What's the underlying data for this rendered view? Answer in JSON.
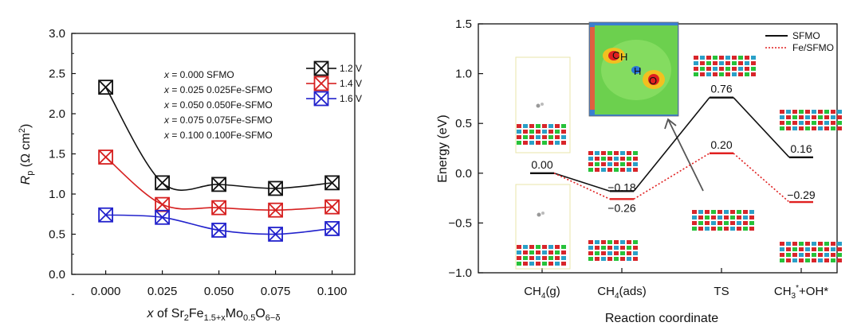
{
  "chart_data": [
    {
      "type": "line",
      "xlabel_prefix": "x",
      "xlabel_mid": " of Sr",
      "xlabel_sub1": "2",
      "xlabel_fe": "Fe",
      "xlabel_sub2": "1.5+x",
      "xlabel_mo": "Mo",
      "xlabel_sub3": "0.5",
      "xlabel_o": "O",
      "xlabel_sub4": "6−δ",
      "ylabel_main": "R",
      "ylabel_sub": "p",
      "ylabel_units": " (Ω cm",
      "ylabel_sup": "2",
      "ylabel_close": ")",
      "x_ticks": [
        "0.000",
        "0.025",
        "0.050",
        "0.075",
        "0.100"
      ],
      "x": [
        0.0,
        0.025,
        0.05,
        0.075,
        0.1
      ],
      "xlim": [
        -0.015,
        0.11
      ],
      "ylim": [
        0.0,
        3.0
      ],
      "y_ticks": [
        "0.0",
        "0.5",
        "1.0",
        "1.5",
        "2.0",
        "2.5",
        "3.0"
      ],
      "series": [
        {
          "name": "1.2 V",
          "color": "#111111",
          "values": [
            2.33,
            1.14,
            1.12,
            1.07,
            1.14
          ]
        },
        {
          "name": "1.4 V",
          "color": "#d62020",
          "values": [
            1.46,
            0.87,
            0.83,
            0.8,
            0.84
          ]
        },
        {
          "name": "1.6 V",
          "color": "#2222cc",
          "values": [
            0.74,
            0.71,
            0.55,
            0.5,
            0.57
          ]
        }
      ],
      "annotations": [
        {
          "var": "x",
          "text": " = 0.000 SFMO"
        },
        {
          "var": "x",
          "text": " = 0.025 0.025Fe-SFMO"
        },
        {
          "var": "x",
          "text": " = 0.050 0.050Fe-SFMO"
        },
        {
          "var": "x",
          "text": " = 0.075 0.075Fe-SFMO"
        },
        {
          "var": "x",
          "text": " = 0.100 0.100Fe-SFMO"
        }
      ],
      "legend": "top-right"
    },
    {
      "type": "line",
      "ylabel": "Energy (eV)",
      "xlabel": "Reaction coordinate",
      "ylim": [
        -1.0,
        1.5
      ],
      "y_ticks": [
        "−1.0",
        "−0.5",
        "0.0",
        "0.5",
        "1.0",
        "1.5"
      ],
      "categories": [
        {
          "main": "CH",
          "sub": "4",
          "tail": "(g)"
        },
        {
          "main": "CH",
          "sub": "4",
          "tail": "(ads)"
        },
        {
          "main": "TS",
          "sub": "",
          "tail": ""
        },
        {
          "main": "CH",
          "sub": "3",
          "sup": "*",
          "tail": "+OH*"
        }
      ],
      "series": [
        {
          "name": "SFMO",
          "color": "#111111",
          "dash": "solid",
          "values": [
            0.0,
            -0.18,
            0.76,
            0.16
          ],
          "labels": [
            "0.00",
            "−0.18",
            "0.76",
            "0.16"
          ]
        },
        {
          "name": "Fe/SFMO",
          "color": "#e02020",
          "dash": "dotted",
          "values": [
            0.0,
            -0.26,
            0.2,
            -0.29
          ],
          "labels": [
            "",
            "−0.26",
            "0.20",
            "−0.29"
          ]
        }
      ],
      "inset_labels": [
        "C",
        "H",
        "H",
        "O"
      ],
      "legend": "top-right"
    }
  ]
}
